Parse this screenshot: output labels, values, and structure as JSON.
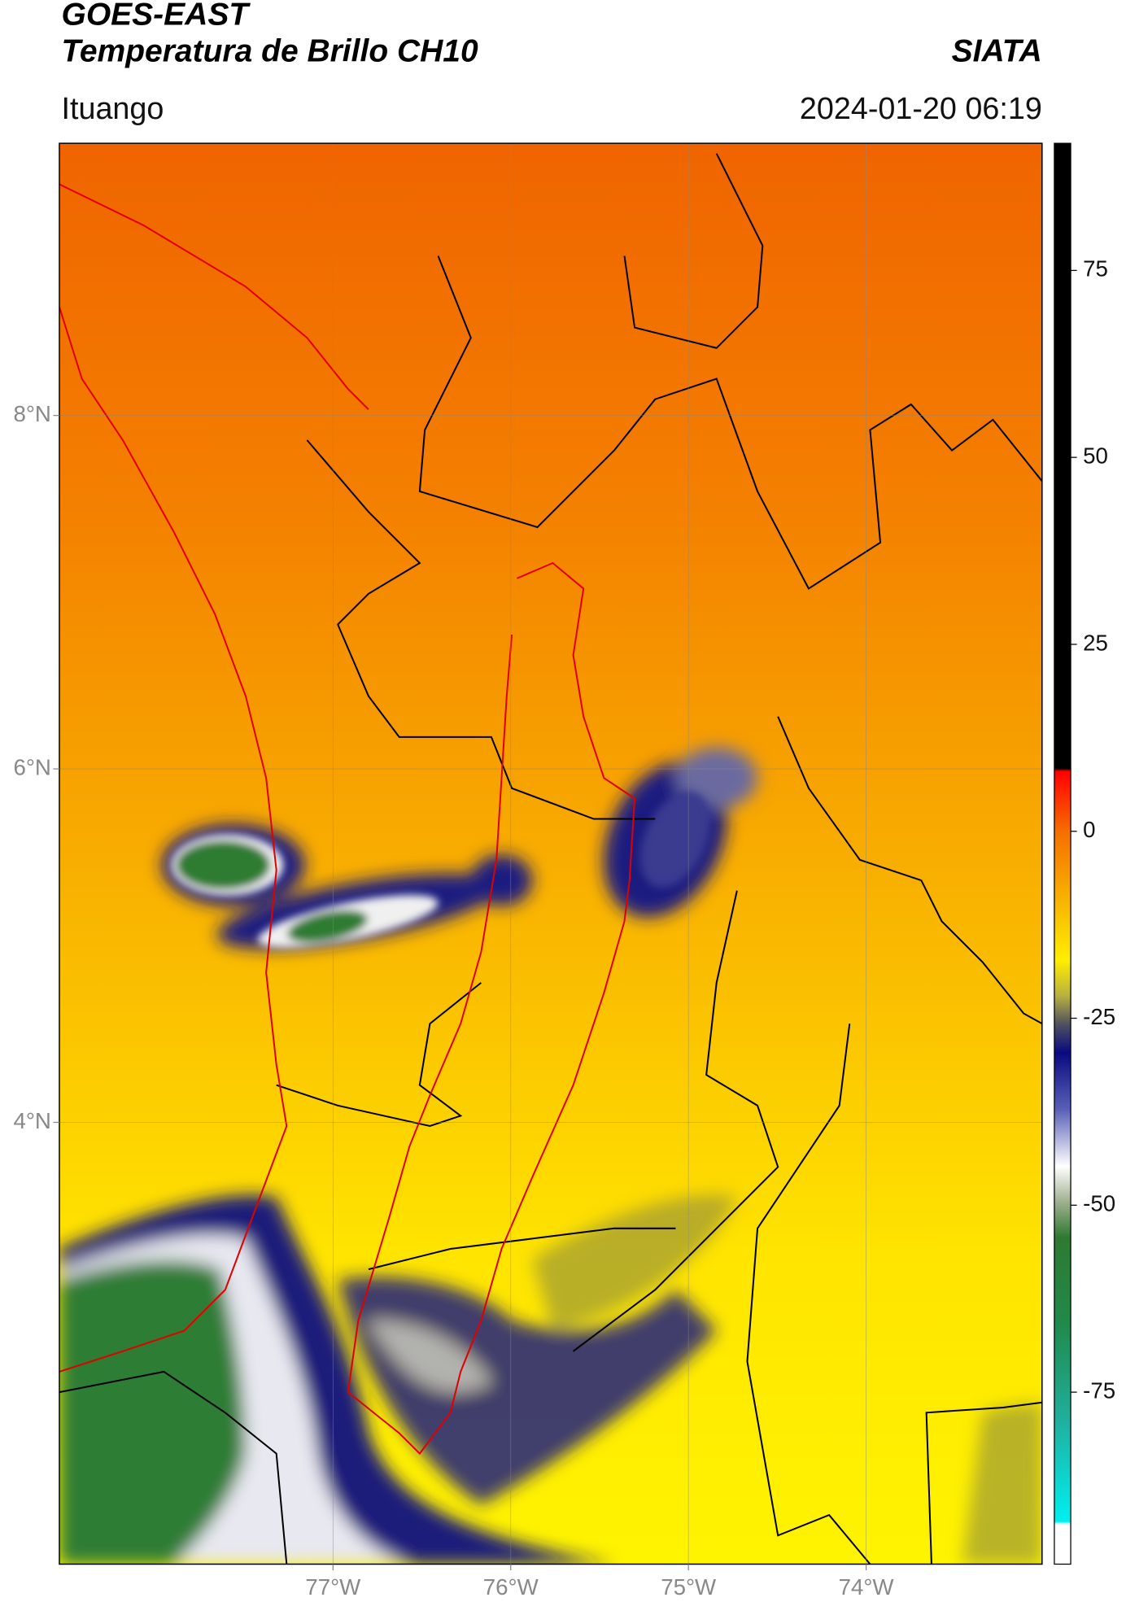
{
  "header": {
    "title": "GOES-EAST",
    "subtitle": "Temperatura de Brillo CH10",
    "brand": "SIATA",
    "location": "Ituango",
    "datetime": "2024-01-20 06:19"
  },
  "map": {
    "lon_range": [
      -78.54,
      -73.01
    ],
    "lat_range": [
      1.5,
      9.54
    ],
    "grid": true,
    "lon_ticks": [
      {
        "value": -77,
        "label": "77°W"
      },
      {
        "value": -76,
        "label": "76°W"
      },
      {
        "value": -75,
        "label": "75°W"
      },
      {
        "value": -74,
        "label": "74°W"
      }
    ],
    "lat_ticks": [
      {
        "value": 8,
        "label": "8°N"
      },
      {
        "value": 6,
        "label": "6°N"
      },
      {
        "value": 4,
        "label": "4°N"
      }
    ]
  },
  "colorbar": {
    "range": [
      -98,
      92
    ],
    "ticks": [
      75,
      50,
      25,
      0,
      -25,
      -50,
      -75
    ]
  }
}
